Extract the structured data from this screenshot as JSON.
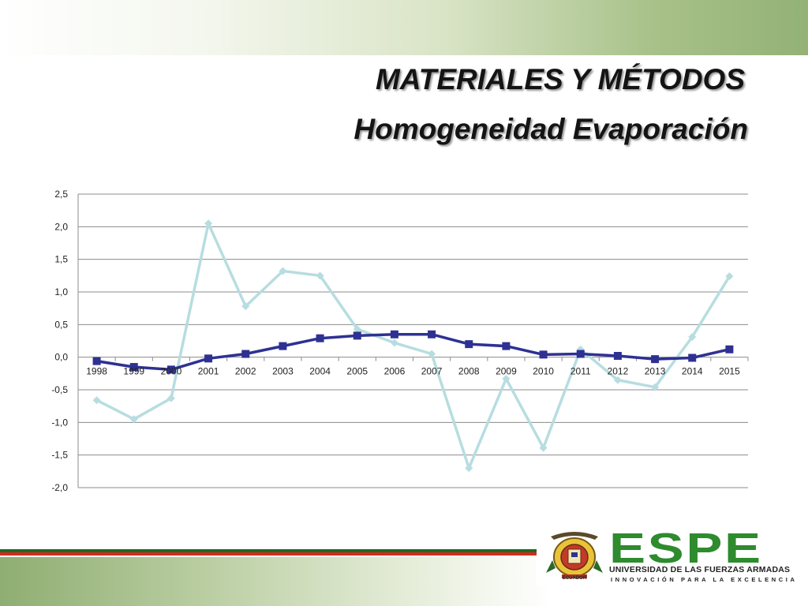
{
  "slide": {
    "title": "MATERIALES Y MÉTODOS",
    "subtitle": "Homogeneidad Evaporación"
  },
  "logo": {
    "wordmark": "ESPE",
    "university": "UNIVERSIDAD DE LAS FUERZAS ARMADAS",
    "slogan": "INNOVACIÓN PARA LA EXCELENCIA",
    "seal_text": "ECUADOR",
    "wordmark_color": "#2e8b2e"
  },
  "colors": {
    "dark_series": "#2e3192",
    "light_series": "#b7dde0",
    "grid": "#8c8c8c",
    "accent_green": "#1a6b22",
    "accent_red": "#d42a1c"
  },
  "chart_data": {
    "type": "line",
    "categories": [
      "1998",
      "1999",
      "2000",
      "2001",
      "2002",
      "2003",
      "2004",
      "2005",
      "2006",
      "2007",
      "2008",
      "2009",
      "2010",
      "2011",
      "2012",
      "2013",
      "2014",
      "2015"
    ],
    "ylim": [
      -2.0,
      2.5
    ],
    "yticks": [
      "2,5",
      "2,0",
      "1,5",
      "1,0",
      "0,5",
      "0,0",
      "-0,5",
      "-1,0",
      "-1,5",
      "-2,0"
    ],
    "grid": true,
    "legend": "none",
    "series": [
      {
        "color": "#2e3192",
        "marker": "square",
        "values": [
          -0.06,
          -0.15,
          -0.19,
          -0.02,
          0.05,
          0.17,
          0.29,
          0.33,
          0.35,
          0.35,
          0.2,
          0.17,
          0.04,
          0.05,
          0.02,
          -0.03,
          -0.01,
          0.12
        ]
      },
      {
        "color": "#b7dde0",
        "marker": "diamond",
        "values": [
          -0.66,
          -0.95,
          -0.63,
          2.05,
          0.78,
          1.32,
          1.25,
          0.43,
          0.22,
          0.05,
          -1.7,
          -0.33,
          -1.39,
          0.12,
          -0.35,
          -0.46,
          0.31,
          1.24
        ]
      }
    ]
  }
}
